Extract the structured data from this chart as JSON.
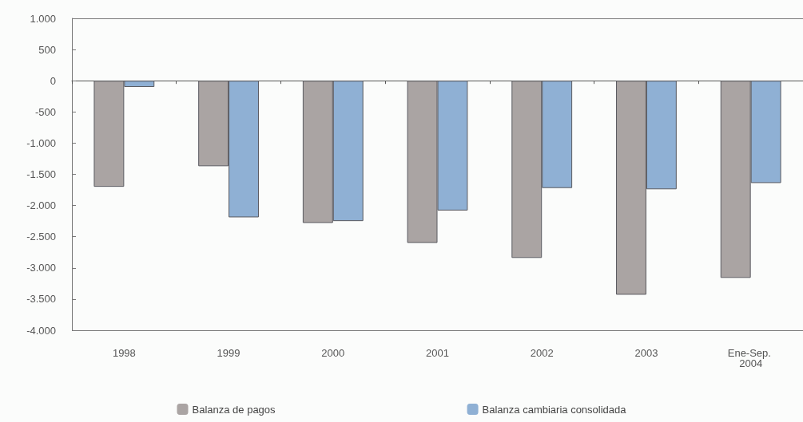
{
  "chart_data": {
    "type": "bar",
    "categories": [
      "1998",
      "1999",
      "2000",
      "2001",
      "2002",
      "2003",
      "Ene-Sep. 2004"
    ],
    "series": [
      {
        "name": "Balanza de pagos",
        "color": "#aaa4a3",
        "values": [
          -1700,
          -1370,
          -2280,
          -2600,
          -2840,
          -3430,
          -3160
        ]
      },
      {
        "name": "Balanza cambiaria consolidada",
        "color": "#8fb0d4",
        "values": [
          -100,
          -2190,
          -2250,
          -2080,
          -1720,
          -1740,
          -1640
        ]
      }
    ],
    "ylim": [
      -4000,
      1000
    ],
    "yticks": [
      {
        "value": 1000,
        "label": "1.000"
      },
      500,
      0,
      {
        "value": -500,
        "label": "-500"
      },
      {
        "value": -1000,
        "label": "-1.000"
      },
      {
        "value": -1500,
        "label": "-1.500"
      },
      {
        "value": -2000,
        "label": "-2.000"
      },
      {
        "value": -2500,
        "label": "-2.500"
      },
      {
        "value": -3000,
        "label": "-3.000"
      },
      {
        "value": -3500,
        "label": "-3.500"
      },
      {
        "value": -4000,
        "label": "-4.000"
      }
    ],
    "legend": "bottom"
  }
}
